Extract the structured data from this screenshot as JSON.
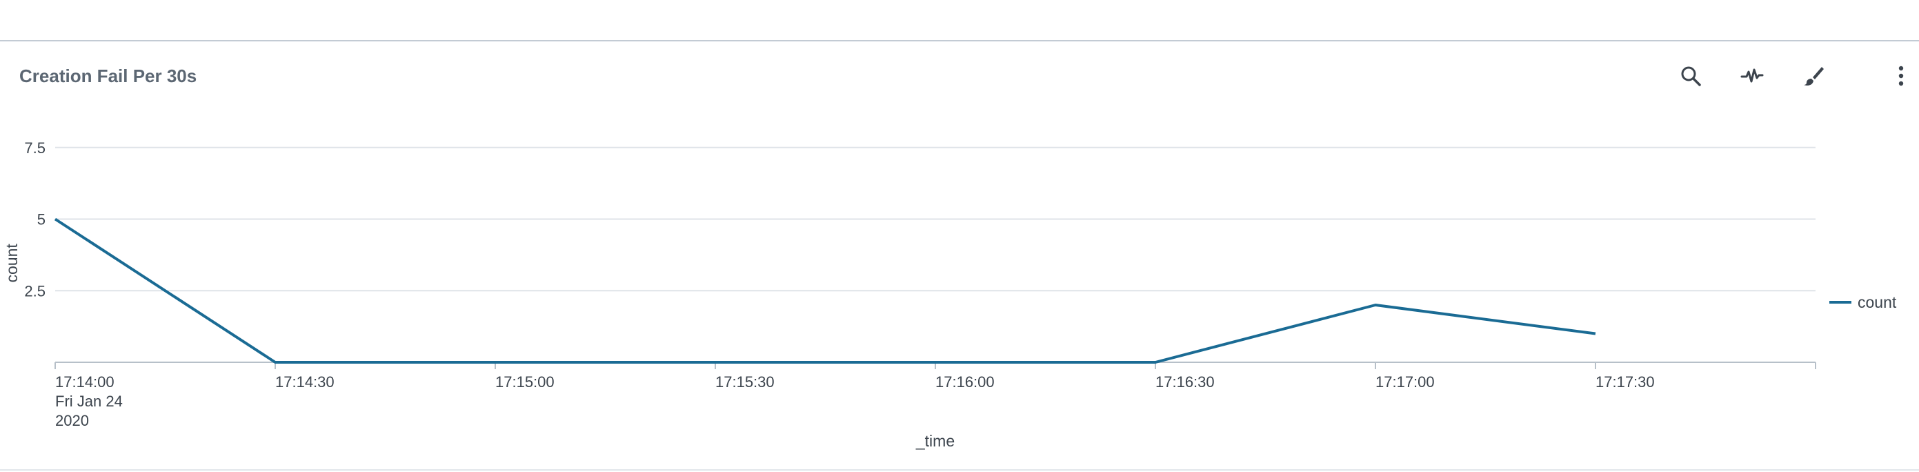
{
  "panel": {
    "title": "Creation Fail Per 30s"
  },
  "toolbar": [
    {
      "name": "search-icon",
      "label": "Search"
    },
    {
      "name": "pulse-icon",
      "label": "Show trend"
    },
    {
      "name": "brush-icon",
      "label": "Format"
    },
    {
      "name": "more-vertical-icon",
      "label": "More"
    }
  ],
  "colors": {
    "series": "#1a6b94",
    "grid": "#dfe3e8",
    "axis": "#b7c0c9",
    "text": "#3c444d"
  },
  "chart_data": {
    "type": "line",
    "xlabel": "_time",
    "ylabel": "count",
    "x": [
      "17:14:00",
      "17:14:30",
      "17:15:00",
      "17:15:30",
      "17:16:00",
      "17:16:30",
      "17:17:00",
      "17:17:30"
    ],
    "x_first_sublabels": [
      "Fri Jan 24",
      "2020"
    ],
    "series": [
      {
        "name": "count",
        "values": [
          5,
          0,
          0,
          0,
          0,
          0,
          2,
          1
        ]
      }
    ],
    "yticks": [
      "2.5",
      "5",
      "7.5"
    ],
    "ylim": [
      0,
      10
    ],
    "grid": true,
    "legend": "right"
  }
}
